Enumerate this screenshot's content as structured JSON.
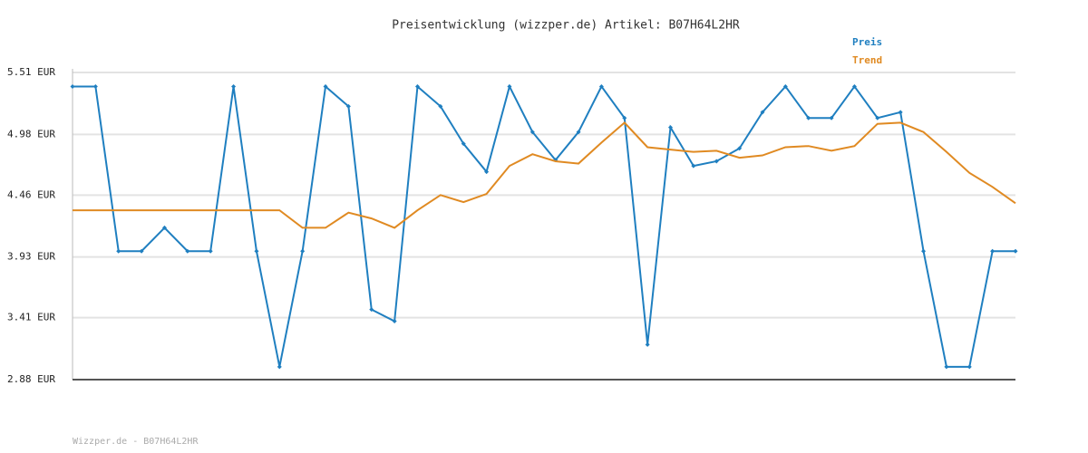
{
  "chart_data": {
    "type": "line",
    "title": "Preisentwicklung (wizzper.de) Artikel: B07H64L2HR",
    "categories": [
      null,
      null,
      null,
      null,
      null,
      null,
      null,
      null,
      null,
      null,
      null,
      null,
      null,
      null,
      null,
      null,
      null,
      null,
      null,
      null,
      null,
      null,
      null,
      null,
      null,
      null,
      null,
      null,
      null,
      null,
      null,
      null,
      null,
      null,
      null,
      null,
      null,
      null,
      null,
      null,
      null,
      null
    ],
    "series": [
      {
        "name": "Preis",
        "color": "#1f7fc0",
        "markers": true,
        "values": [
          5.39,
          5.39,
          3.98,
          3.98,
          4.18,
          3.98,
          3.98,
          5.39,
          3.98,
          2.99,
          3.98,
          5.39,
          5.22,
          3.48,
          3.38,
          5.39,
          5.22,
          4.9,
          4.66,
          5.39,
          5.0,
          4.76,
          5.0,
          5.39,
          5.12,
          3.18,
          5.04,
          4.71,
          4.75,
          4.86,
          5.17,
          5.39,
          5.12,
          5.12,
          5.39,
          5.12,
          5.17,
          3.98,
          2.99,
          2.99,
          3.98,
          3.98
        ]
      },
      {
        "name": "Trend",
        "color": "#e08a22",
        "markers": false,
        "values": [
          4.33,
          4.33,
          4.33,
          4.33,
          4.33,
          4.33,
          4.33,
          4.33,
          4.33,
          4.33,
          4.18,
          4.18,
          4.31,
          4.26,
          4.18,
          4.33,
          4.46,
          4.4,
          4.47,
          4.71,
          4.81,
          4.75,
          4.73,
          4.91,
          5.08,
          4.87,
          4.85,
          4.83,
          4.84,
          4.78,
          4.8,
          4.87,
          4.88,
          4.84,
          4.88,
          5.07,
          5.08,
          5.0,
          4.83,
          4.65,
          4.53,
          4.39
        ]
      }
    ],
    "ylim": [
      2.88,
      5.51
    ],
    "yticks": [
      {
        "value": 5.51,
        "label": "5.51 EUR"
      },
      {
        "value": 4.98,
        "label": "4.98 EUR"
      },
      {
        "value": 4.46,
        "label": "4.46 EUR"
      },
      {
        "value": 3.93,
        "label": "3.93 EUR"
      },
      {
        "value": 3.41,
        "label": "3.41 EUR"
      },
      {
        "value": 2.88,
        "label": "2.88 EUR"
      }
    ],
    "grid": true,
    "legend": "top-right"
  },
  "footer": "Wizzper.de - B07H64L2HR"
}
